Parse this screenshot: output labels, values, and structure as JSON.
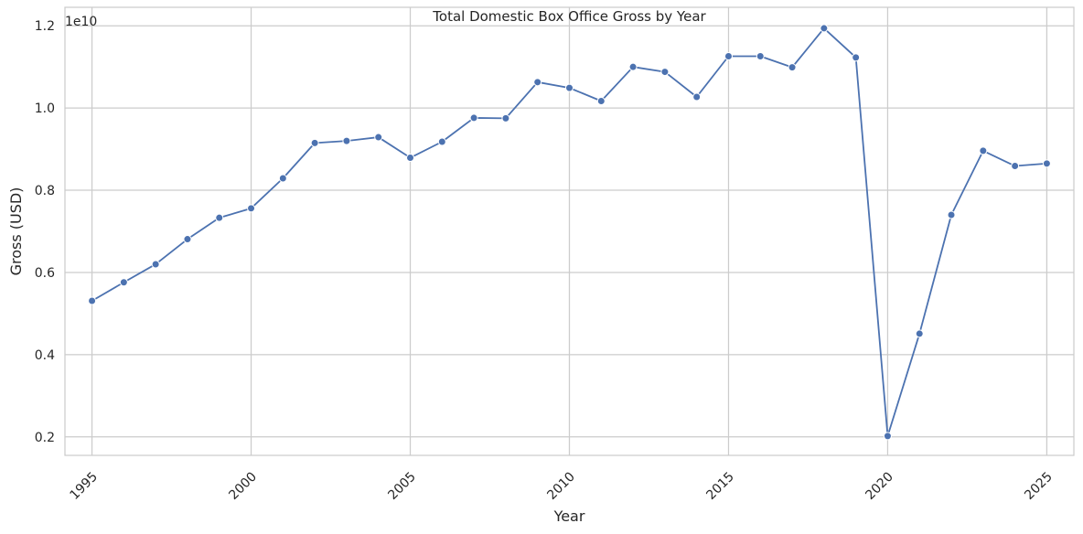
{
  "chart_data": {
    "type": "line",
    "title": "Total Domestic Box Office Gross by Year",
    "xlabel": "Year",
    "ylabel": "Gross (USD)",
    "y_offset_text": "1e10",
    "xlim": [
      1994.15,
      2025.85
    ],
    "ylim": [
      0.155,
      1.245
    ],
    "y_scale_factor": 10000000000,
    "x_ticks": [
      1995,
      2000,
      2005,
      2010,
      2015,
      2020,
      2025
    ],
    "y_ticks": [
      0.2,
      0.4,
      0.6,
      0.8,
      1.0,
      1.2
    ],
    "y_tick_labels": [
      "0.2",
      "0.4",
      "0.6",
      "0.8",
      "1.0",
      "1.2"
    ],
    "grid": true,
    "marker": "circle",
    "color": "#4c72b0",
    "series": [
      {
        "x": [
          1995,
          1996,
          1997,
          1998,
          1999,
          2000,
          2001,
          2002,
          2003,
          2004,
          2005,
          2006,
          2007,
          2008,
          2009,
          2010,
          2011,
          2012,
          2013,
          2014,
          2015,
          2016,
          2017,
          2018,
          2019,
          2020,
          2021,
          2022,
          2023,
          2024,
          2025
        ],
        "values": [
          0.531,
          0.576,
          0.62,
          0.681,
          0.733,
          0.756,
          0.829,
          0.915,
          0.92,
          0.929,
          0.879,
          0.918,
          0.976,
          0.975,
          1.063,
          1.049,
          1.017,
          1.1,
          1.088,
          1.027,
          1.126,
          1.126,
          1.099,
          1.194,
          1.123,
          0.202,
          0.451,
          0.74,
          0.896,
          0.859,
          0.865
        ]
      }
    ]
  }
}
